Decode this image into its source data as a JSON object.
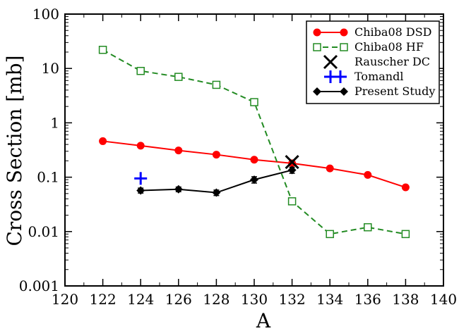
{
  "chart_data": {
    "type": "line",
    "xlabel": "A",
    "ylabel": "Cross Section [mb]",
    "xlim": [
      120,
      140
    ],
    "ylim": [
      0.001,
      100
    ],
    "yscale": "log",
    "x_ticks": [
      120,
      122,
      124,
      126,
      128,
      130,
      132,
      134,
      136,
      138,
      140
    ],
    "y_ticks": [
      0.001,
      0.01,
      0.1,
      1,
      10,
      100
    ],
    "y_tick_labels": [
      "0.001",
      "0.01",
      "0.1",
      "1",
      "10",
      "100"
    ],
    "grid": false,
    "legend_position": "top-right",
    "series": [
      {
        "name": "Chiba08 DSD",
        "color": "#ff0000",
        "marker": "filled-circle",
        "line": "solid",
        "x": [
          122,
          124,
          126,
          128,
          130,
          132,
          134,
          136,
          138
        ],
        "y": [
          0.46,
          0.38,
          0.31,
          0.26,
          0.21,
          0.18,
          0.145,
          0.11,
          0.065
        ]
      },
      {
        "name": "Chiba08 HF",
        "color": "#228b22",
        "marker": "open-square",
        "line": "dashed",
        "x": [
          122,
          124,
          126,
          128,
          130,
          132,
          134,
          136,
          138
        ],
        "y": [
          22,
          9,
          7,
          5,
          2.4,
          0.036,
          0.009,
          0.012,
          0.009
        ]
      },
      {
        "name": "Rauscher DC",
        "color": "#000000",
        "marker": "x",
        "line": "none",
        "x": [
          132
        ],
        "y": [
          0.19
        ]
      },
      {
        "name": "Tomandl",
        "color": "#0000ff",
        "marker": "plus",
        "line": "none",
        "x": [
          124
        ],
        "y": [
          0.095
        ]
      },
      {
        "name": "Present Study",
        "color": "#000000",
        "marker": "filled-diamond",
        "line": "solid",
        "x": [
          124,
          126,
          128,
          130,
          132
        ],
        "y": [
          0.057,
          0.06,
          0.052,
          0.09,
          0.135
        ],
        "y_err_low": [
          0.051,
          0.054,
          0.046,
          0.078,
          0.118
        ],
        "y_err_high": [
          0.063,
          0.066,
          0.058,
          0.102,
          0.152
        ]
      }
    ]
  }
}
